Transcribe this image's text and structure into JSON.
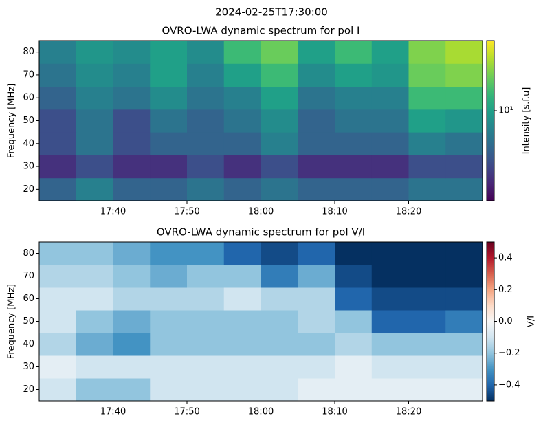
{
  "title": "2024-02-25T17:30:00",
  "chart_data": [
    {
      "type": "heatmap",
      "title": "OVRO-LWA dynamic spectrum for pol I",
      "ylabel": "Frequency [MHz]",
      "colorbar_label": "Intensity [s.f.u]",
      "colormap": "viridis",
      "color_scale": "log",
      "clim": [
        2,
        35
      ],
      "cticks": [
        {
          "value": 10,
          "label": "10¹"
        }
      ],
      "xlim": [
        "17:30",
        "18:30"
      ],
      "xticks": [
        "17:40",
        "17:50",
        "18:00",
        "18:10",
        "18:20"
      ],
      "ylim": [
        15,
        85
      ],
      "yticks": [
        20,
        30,
        40,
        50,
        60,
        70,
        80
      ],
      "x_bins": [
        "17:30",
        "17:35",
        "17:40",
        "17:45",
        "17:50",
        "17:55",
        "18:00",
        "18:05",
        "18:10",
        "18:15",
        "18:20",
        "18:25",
        "18:30"
      ],
      "y_bins": [
        15,
        25,
        35,
        45,
        55,
        65,
        75,
        85
      ],
      "values": [
        [
          5,
          7,
          5,
          5,
          6,
          5,
          6,
          5,
          5,
          5,
          6,
          6
        ],
        [
          3,
          4,
          3,
          3,
          4,
          3,
          4,
          3,
          3,
          3,
          4,
          4
        ],
        [
          4,
          6,
          4,
          5,
          5,
          5,
          7,
          5,
          5,
          5,
          7,
          6
        ],
        [
          4,
          6,
          4,
          6,
          5,
          6,
          8,
          5,
          6,
          6,
          10,
          9
        ],
        [
          5,
          7,
          6,
          8,
          6,
          7,
          10,
          6,
          7,
          7,
          14,
          14
        ],
        [
          6,
          8,
          7,
          10,
          7,
          10,
          14,
          8,
          10,
          9,
          18,
          20
        ],
        [
          7,
          9,
          8,
          10,
          8,
          14,
          18,
          10,
          14,
          10,
          20,
          24
        ]
      ]
    },
    {
      "type": "heatmap",
      "title": "OVRO-LWA dynamic spectrum for pol V/I",
      "ylabel": "Frequency [MHz]",
      "colorbar_label": "V/I",
      "colormap": "RdBu_r",
      "color_scale": "linear",
      "clim": [
        -0.5,
        0.5
      ],
      "cticks": [
        {
          "value": -0.4,
          "label": "−0.4"
        },
        {
          "value": -0.2,
          "label": "−0.2"
        },
        {
          "value": 0,
          "label": "0.0"
        },
        0.2,
        0.4
      ],
      "xlim": [
        "17:30",
        "18:30"
      ],
      "xticks": [
        "17:40",
        "17:50",
        "18:00",
        "18:10",
        "18:20"
      ],
      "ylim": [
        15,
        85
      ],
      "yticks": [
        20,
        30,
        40,
        50,
        60,
        70,
        80
      ],
      "x_bins": [
        "17:30",
        "17:35",
        "17:40",
        "17:45",
        "17:50",
        "17:55",
        "18:00",
        "18:05",
        "18:10",
        "18:15",
        "18:20",
        "18:25",
        "18:30"
      ],
      "y_bins": [
        15,
        25,
        35,
        45,
        55,
        65,
        75,
        85
      ],
      "values": [
        [
          -0.1,
          -0.2,
          -0.2,
          -0.1,
          -0.1,
          -0.1,
          -0.1,
          -0.05,
          -0.05,
          -0.05,
          -0.05,
          -0.05
        ],
        [
          -0.05,
          -0.1,
          -0.1,
          -0.1,
          -0.1,
          -0.1,
          -0.1,
          -0.1,
          -0.05,
          -0.1,
          -0.1,
          -0.1
        ],
        [
          -0.15,
          -0.25,
          -0.3,
          -0.2,
          -0.2,
          -0.2,
          -0.2,
          -0.2,
          -0.15,
          -0.2,
          -0.2,
          -0.2
        ],
        [
          -0.1,
          -0.2,
          -0.25,
          -0.2,
          -0.2,
          -0.2,
          -0.2,
          -0.15,
          -0.2,
          -0.4,
          -0.4,
          -0.35
        ],
        [
          -0.1,
          -0.1,
          -0.15,
          -0.15,
          -0.15,
          -0.1,
          -0.15,
          -0.15,
          -0.4,
          -0.45,
          -0.45,
          -0.45
        ],
        [
          -0.15,
          -0.15,
          -0.2,
          -0.25,
          -0.2,
          -0.2,
          -0.35,
          -0.25,
          -0.45,
          -0.5,
          -0.5,
          -0.5
        ],
        [
          -0.2,
          -0.2,
          -0.25,
          -0.3,
          -0.3,
          -0.4,
          -0.45,
          -0.4,
          -0.5,
          -0.5,
          -0.5,
          -0.5
        ]
      ]
    }
  ]
}
